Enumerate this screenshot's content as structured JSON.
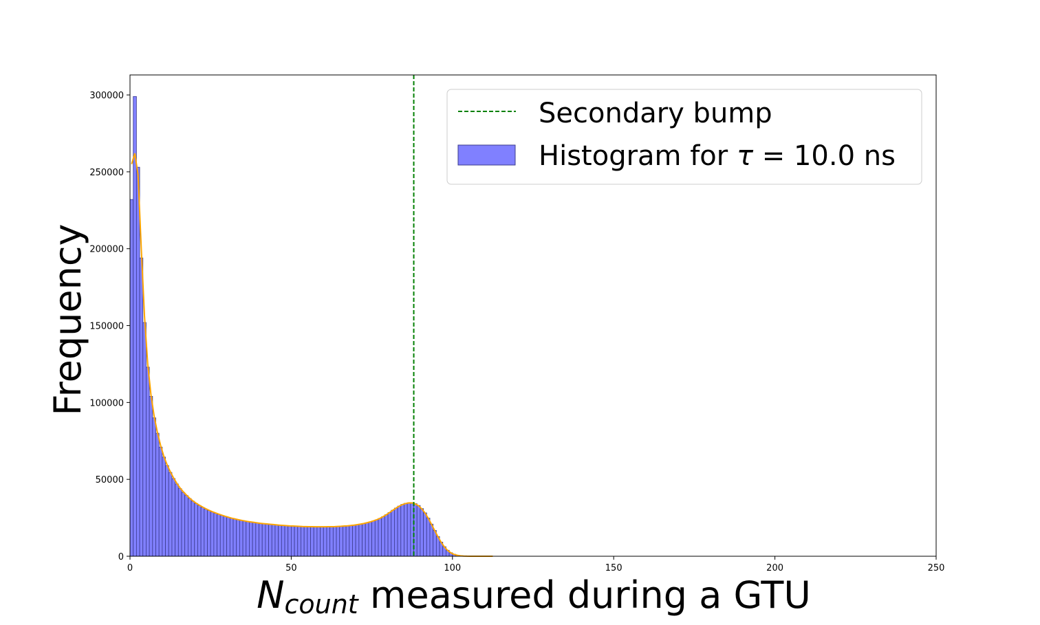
{
  "chart_data": {
    "type": "bar",
    "title": "",
    "xlabel_main": "N",
    "xlabel_sub": "count",
    "xlabel_rest": " measured during a GTU",
    "ylabel": "Frequency",
    "xlim": [
      0,
      250
    ],
    "ylim": [
      0,
      313000
    ],
    "xticks": [
      0,
      50,
      100,
      150,
      200,
      250
    ],
    "yticks": [
      0,
      50000,
      100000,
      150000,
      200000,
      250000,
      300000
    ],
    "grid": false,
    "legend_position": "top-right",
    "vline": {
      "name": "Secondary bump",
      "x": 88,
      "color": "#008000",
      "style": "dashed"
    },
    "histogram": {
      "name_prefix": "Histogram for ",
      "name_symbol": "τ",
      "name_suffix": " = 10.0 ns",
      "bin_width": 1,
      "bin_start": 0,
      "color": "#8080ff",
      "edge_color": "#3a3a8a",
      "values": [
        232000,
        299000,
        253000,
        194000,
        152000,
        123000,
        104000,
        90000,
        80000,
        71000,
        64500,
        59000,
        54500,
        50500,
        47000,
        44000,
        41500,
        39500,
        37500,
        35800,
        34300,
        33000,
        31800,
        30700,
        29700,
        28800,
        28000,
        27200,
        26500,
        25900,
        25300,
        24700,
        24200,
        23700,
        23300,
        22900,
        22500,
        22200,
        21900,
        21600,
        21300,
        21100,
        20900,
        20700,
        20500,
        20300,
        20100,
        20000,
        19850,
        19700,
        19600,
        19500,
        19400,
        19300,
        19250,
        19200,
        19150,
        19100,
        19100,
        19100,
        19100,
        19150,
        19200,
        19250,
        19350,
        19450,
        19600,
        19750,
        19950,
        20200,
        20500,
        20850,
        21250,
        21750,
        22300,
        22950,
        23700,
        24600,
        25700,
        27000,
        28400,
        29900,
        31300,
        32600,
        33700,
        34400,
        34800,
        34800,
        34200,
        33000,
        31000,
        28200,
        24800,
        20900,
        16800,
        12800,
        9200,
        6200,
        3900,
        2300,
        1300,
        700,
        380,
        200,
        110,
        60,
        35,
        20,
        12,
        8,
        5,
        3,
        2
      ]
    },
    "kde": {
      "color": "#ffa500",
      "values": [
        255000,
        262000,
        248000,
        200000,
        156000,
        125000,
        105000,
        91000,
        80500,
        72000,
        65000,
        59500,
        55000,
        51000,
        47500,
        44500,
        42000,
        39800,
        37800,
        36000,
        34500,
        33200,
        32000,
        30900,
        29900,
        29000,
        28200,
        27400,
        26700,
        26000,
        25400,
        24800,
        24300,
        23800,
        23400,
        23000,
        22600,
        22300,
        22000,
        21700,
        21400,
        21200,
        21000,
        20800,
        20600,
        20400,
        20200,
        20050,
        19900,
        19750,
        19650,
        19550,
        19450,
        19350,
        19300,
        19250,
        19200,
        19150,
        19150,
        19150,
        19150,
        19200,
        19250,
        19300,
        19400,
        19500,
        19650,
        19800,
        20000,
        20250,
        20550,
        20900,
        21300,
        21800,
        22350,
        23000,
        23750,
        24650,
        25750,
        27000,
        28400,
        29900,
        31300,
        32600,
        33600,
        34300,
        34700,
        34650,
        34000,
        32800,
        30800,
        28100,
        24700,
        20800,
        16700,
        12700,
        9100,
        6100,
        3800,
        2200,
        1200,
        620,
        300,
        140,
        60,
        25,
        10,
        4,
        2,
        1,
        0,
        0,
        0
      ]
    }
  }
}
